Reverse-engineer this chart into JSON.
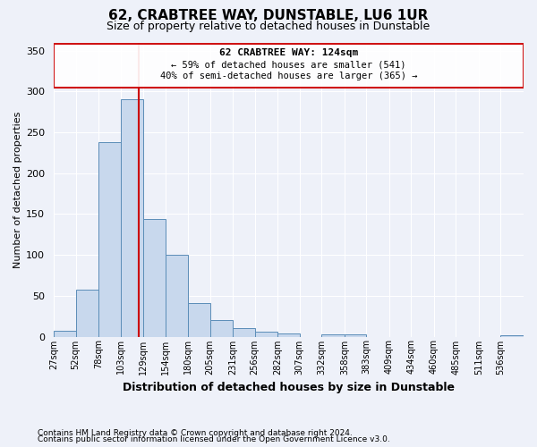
{
  "title": "62, CRABTREE WAY, DUNSTABLE, LU6 1UR",
  "subtitle": "Size of property relative to detached houses in Dunstable",
  "xlabel": "Distribution of detached houses by size in Dunstable",
  "ylabel": "Number of detached properties",
  "footnote1": "Contains HM Land Registry data © Crown copyright and database right 2024.",
  "footnote2": "Contains public sector information licensed under the Open Government Licence v3.0.",
  "bar_color": "#c8d8ed",
  "bar_edge_color": "#5b8db8",
  "background_color": "#eef1f9",
  "grid_color": "#ffffff",
  "annotation_box_edgecolor": "#cc0000",
  "annotation_box_facecolor": "#ffffff",
  "vline_color": "#cc0000",
  "bin_labels": [
    "27sqm",
    "52sqm",
    "78sqm",
    "103sqm",
    "129sqm",
    "154sqm",
    "180sqm",
    "205sqm",
    "231sqm",
    "256sqm",
    "282sqm",
    "307sqm",
    "332sqm",
    "358sqm",
    "383sqm",
    "409sqm",
    "434sqm",
    "460sqm",
    "485sqm",
    "511sqm",
    "536sqm"
  ],
  "bin_edges": [
    27,
    52,
    78,
    103,
    129,
    154,
    180,
    205,
    231,
    256,
    282,
    307,
    332,
    358,
    383,
    409,
    434,
    460,
    485,
    511,
    536,
    562
  ],
  "bar_heights": [
    7,
    57,
    238,
    290,
    144,
    100,
    41,
    20,
    10,
    6,
    4,
    0,
    3,
    3,
    0,
    0,
    0,
    0,
    0,
    0,
    2
  ],
  "property_size": 124,
  "annotation_title": "62 CRABTREE WAY: 124sqm",
  "annotation_line1": "← 59% of detached houses are smaller (541)",
  "annotation_line2": "40% of semi-detached houses are larger (365) →",
  "ylim": [
    0,
    360
  ],
  "yticks": [
    0,
    50,
    100,
    150,
    200,
    250,
    300,
    350
  ]
}
